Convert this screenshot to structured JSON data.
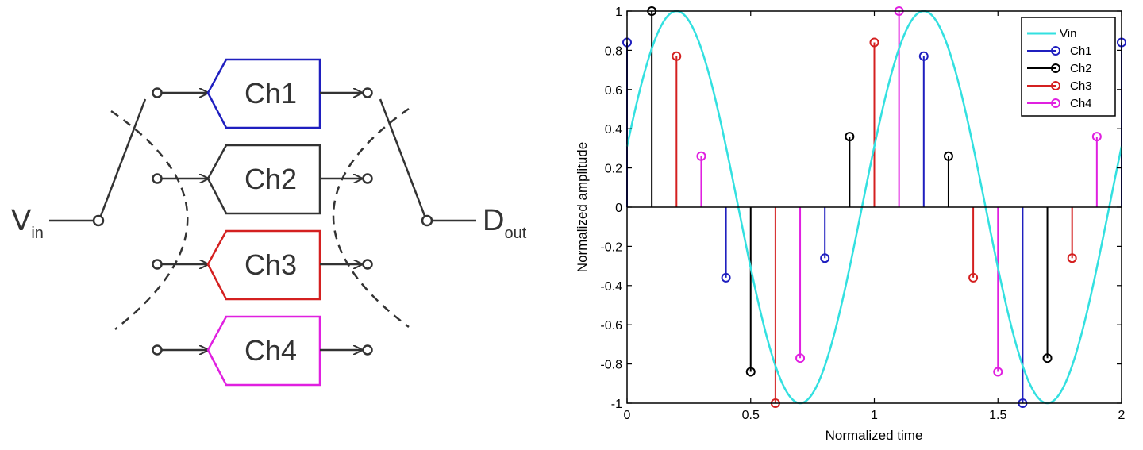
{
  "diagram": {
    "input": {
      "main": "V",
      "sub": "in"
    },
    "output": {
      "main": "D",
      "sub": "out"
    },
    "channels": [
      {
        "label": "Ch1",
        "color": "#1f1fbf"
      },
      {
        "label": "Ch2",
        "color": "#333333"
      },
      {
        "label": "Ch3",
        "color": "#d42020"
      },
      {
        "label": "Ch4",
        "color": "#e020e0"
      }
    ]
  },
  "chart_data": {
    "type": "stem",
    "xlabel": "Normalized time",
    "ylabel": "Normalized amplitude",
    "xlim": [
      0,
      2
    ],
    "ylim": [
      -1,
      1
    ],
    "xticks": [
      "0",
      "0.5",
      "1",
      "1.5",
      "2"
    ],
    "yticks": [
      "1",
      "0.8",
      "0.6",
      "0.4",
      "0.2",
      "0",
      "-0.2",
      "-0.4",
      "-0.6",
      "-0.8",
      "-1"
    ],
    "grid": false,
    "legend": "top-right",
    "curve": {
      "name": "Vin",
      "color": "#33e0e0",
      "frequency": 1,
      "phase_offset": 0.15
    },
    "series": [
      {
        "name": "Ch1",
        "color": "#1f1fbf",
        "x": [
          0,
          0.4,
          0.8,
          1.2,
          1.6,
          2.0
        ],
        "y": [
          0.84,
          -0.36,
          -0.26,
          0.77,
          -1.0,
          0.84
        ]
      },
      {
        "name": "Ch2",
        "color": "#000000",
        "x": [
          0.1,
          0.5,
          0.9,
          1.3,
          1.7
        ],
        "y": [
          1.0,
          -0.84,
          0.36,
          0.26,
          -0.77
        ]
      },
      {
        "name": "Ch3",
        "color": "#d42020",
        "x": [
          0.2,
          0.6,
          1.0,
          1.4,
          1.8
        ],
        "y": [
          0.77,
          -1.0,
          0.84,
          -0.36,
          -0.26
        ]
      },
      {
        "name": "Ch4",
        "color": "#e020e0",
        "x": [
          0.3,
          0.7,
          1.1,
          1.5,
          1.9
        ],
        "y": [
          0.26,
          -0.77,
          1.0,
          -0.84,
          0.36
        ]
      }
    ]
  }
}
